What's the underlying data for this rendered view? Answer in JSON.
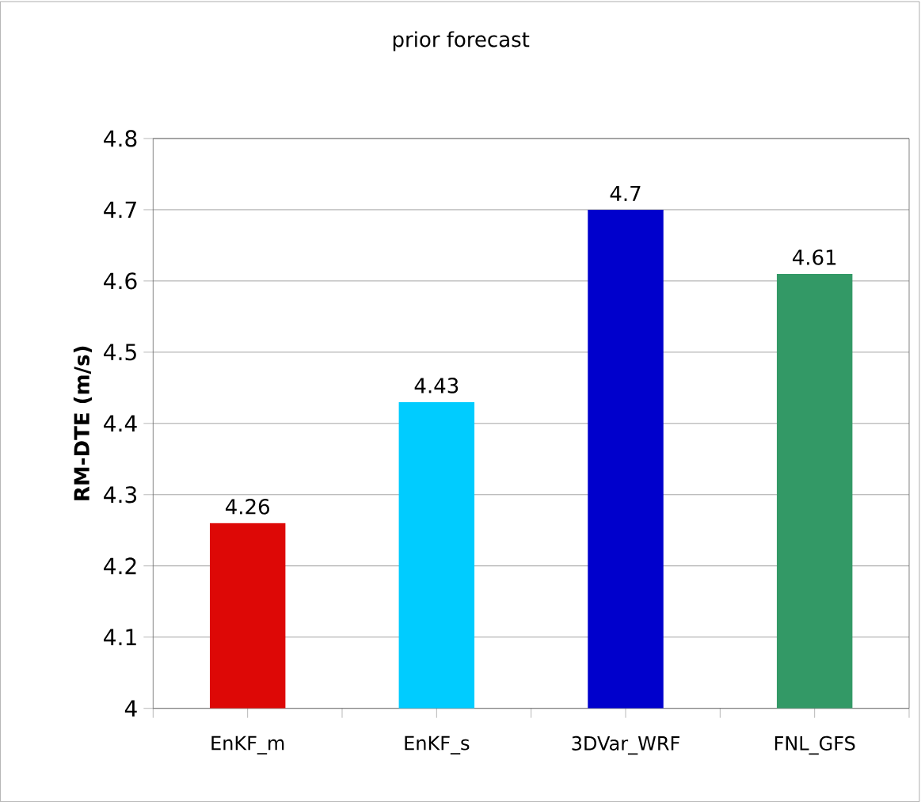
{
  "chart_data": {
    "type": "bar",
    "title": "prior forecast",
    "ylabel": "RM-DTE (m/s)",
    "categories": [
      "EnKF_m",
      "EnKF_s",
      "3DVar_WRF",
      "FNL_GFS"
    ],
    "values": [
      4.26,
      4.43,
      4.7,
      4.61
    ],
    "colors": [
      "#dd0806",
      "#00ccff",
      "#0000cc",
      "#339966"
    ],
    "ylim": [
      4,
      4.8
    ],
    "yticks": [
      4,
      4.1,
      4.2,
      4.3,
      4.4,
      4.5,
      4.6,
      4.7,
      4.8
    ],
    "grid": "y",
    "data_labels": true
  }
}
